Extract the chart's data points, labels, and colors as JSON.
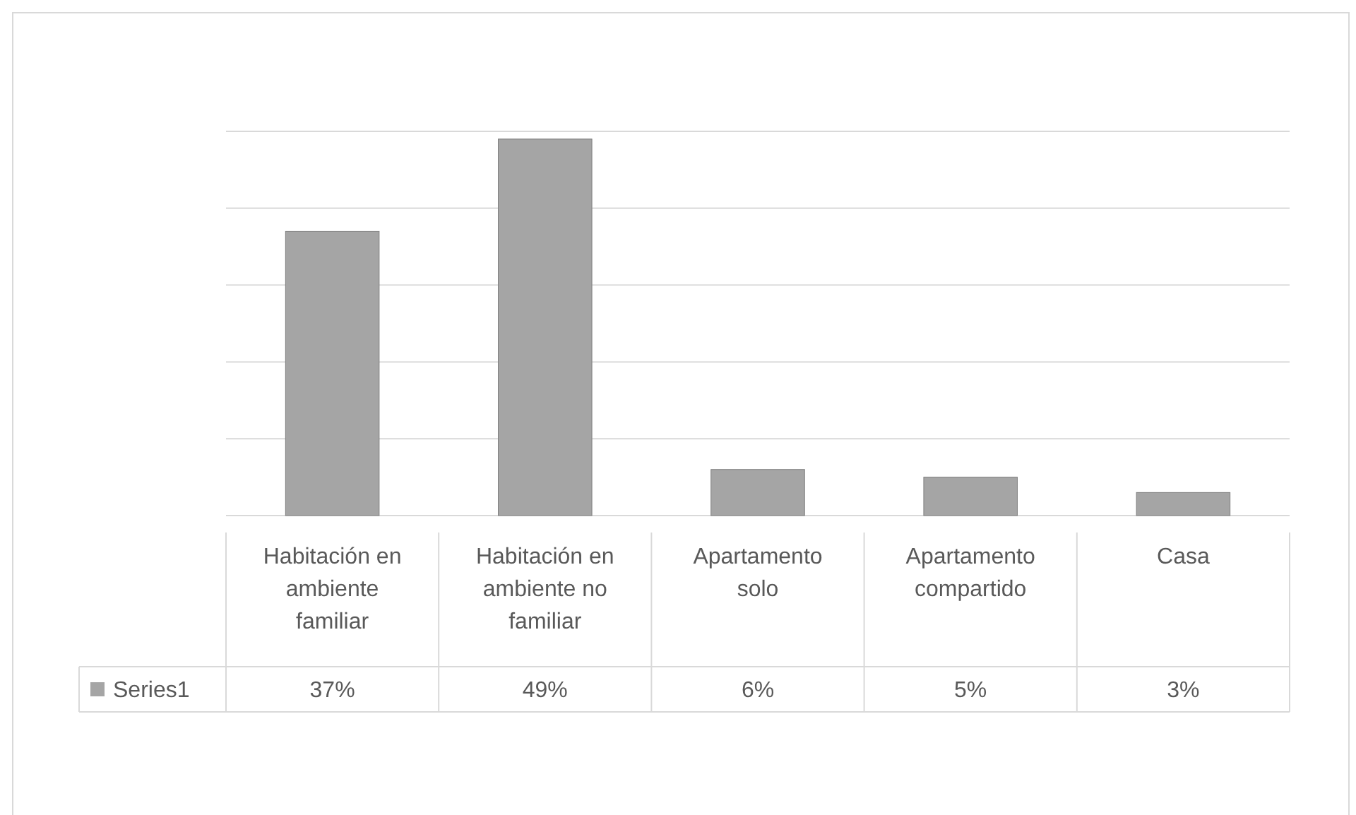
{
  "chart_data": {
    "type": "bar",
    "categories": [
      "Habitación en ambiente familiar",
      "Habitación en ambiente no familiar",
      "Apartamento solo",
      "Apartamento compartido",
      "Casa"
    ],
    "series": [
      {
        "name": "Series1",
        "color": "#a5a5a5",
        "values": [
          37,
          49,
          6,
          5,
          3
        ],
        "value_labels": [
          "37%",
          "49%",
          "6%",
          "5%",
          "3%"
        ]
      }
    ],
    "ylim": [
      0,
      50
    ],
    "yticks": [
      {
        "value": 0,
        "label": null
      },
      {
        "value": 10,
        "label": null
      },
      {
        "value": 20,
        "label": null
      },
      {
        "value": 30,
        "label": null
      },
      {
        "value": 40,
        "label": null
      },
      {
        "value": 50,
        "label": null
      }
    ],
    "grid": "y",
    "legend": "bottom",
    "tick_labels": "x"
  }
}
